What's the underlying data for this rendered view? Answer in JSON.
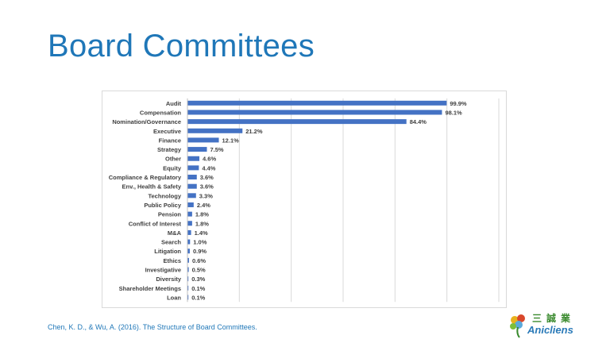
{
  "slide": {
    "title": "Board Committees",
    "citation": "Chen, K. D., & Wu, A. (2016). The Structure of Board  Committees."
  },
  "logo": {
    "chinese": "三誠業",
    "english": "Anicliens"
  },
  "colors": {
    "title": "#1f77b8",
    "bar": "#4472c4"
  },
  "chart_data": {
    "type": "bar",
    "orientation": "horizontal",
    "categories": [
      "Audit",
      "Compensation",
      "Nomination/Governance",
      "Executive",
      "Finance",
      "Strategy",
      "Other",
      "Equity",
      "Compliance & Regulatory",
      "Env., Health & Safety",
      "Technology",
      "Public Policy",
      "Pension",
      "Conflict of Interest",
      "M&A",
      "Search",
      "Litigation",
      "Ethics",
      "Investigative",
      "Diversity",
      "Shareholder Meetings",
      "Loan"
    ],
    "values": [
      99.9,
      98.1,
      84.4,
      21.2,
      12.1,
      7.5,
      4.6,
      4.4,
      3.6,
      3.6,
      3.3,
      2.4,
      1.8,
      1.8,
      1.4,
      1.0,
      0.9,
      0.6,
      0.5,
      0.3,
      0.1,
      0.1
    ],
    "labels": [
      "99.9%",
      "98.1%",
      "84.4%",
      "21.2%",
      "12.1%",
      "7.5%",
      "4.6%",
      "4.4%",
      "3.6%",
      "3.6%",
      "3.3%",
      "2.4%",
      "1.8%",
      "1.8%",
      "1.4%",
      "1.0%",
      "0.9%",
      "0.6%",
      "0.5%",
      "0.3%",
      "0.1%",
      "0.1%"
    ],
    "xlim": [
      0,
      120
    ],
    "grid": true,
    "legend": "none"
  }
}
